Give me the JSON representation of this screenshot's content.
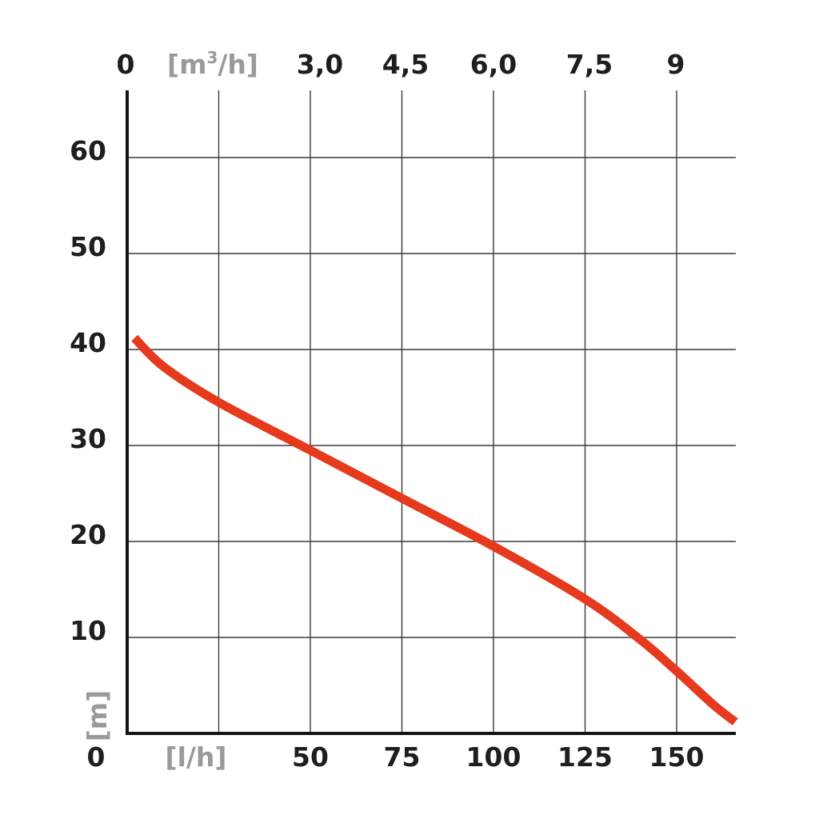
{
  "chart_data": {
    "type": "line",
    "x_axis_bottom": {
      "unit_label": "[l/h]",
      "origin_label": "0",
      "tick_labels": [
        "50",
        "75",
        "100",
        "125",
        "150"
      ],
      "tick_values": [
        50,
        75,
        100,
        125,
        150
      ]
    },
    "x_axis_top": {
      "unit_label_base": "[m",
      "unit_label_sup": "3",
      "unit_label_tail": "/h]",
      "origin_label": "0",
      "tick_labels": [
        "3,0",
        "4,5",
        "6,0",
        "7,5",
        "9"
      ]
    },
    "y_axis": {
      "unit_label": "[m]",
      "origin_label": "0",
      "tick_labels": [
        "10",
        "20",
        "30",
        "40",
        "50",
        "60"
      ],
      "tick_values": [
        10,
        20,
        30,
        40,
        50,
        60
      ]
    },
    "xlim": [
      0,
      166
    ],
    "ylim": [
      0,
      67
    ],
    "grid": true,
    "series": [
      {
        "color": "#e53a1e",
        "x": [
          2,
          10,
          25,
          50,
          75,
          100,
          125,
          140,
          150,
          160,
          166
        ],
        "y": [
          41.2,
          38.2,
          34.5,
          29.5,
          24.5,
          19.5,
          14.0,
          9.8,
          6.5,
          3.0,
          1.2
        ]
      }
    ]
  }
}
